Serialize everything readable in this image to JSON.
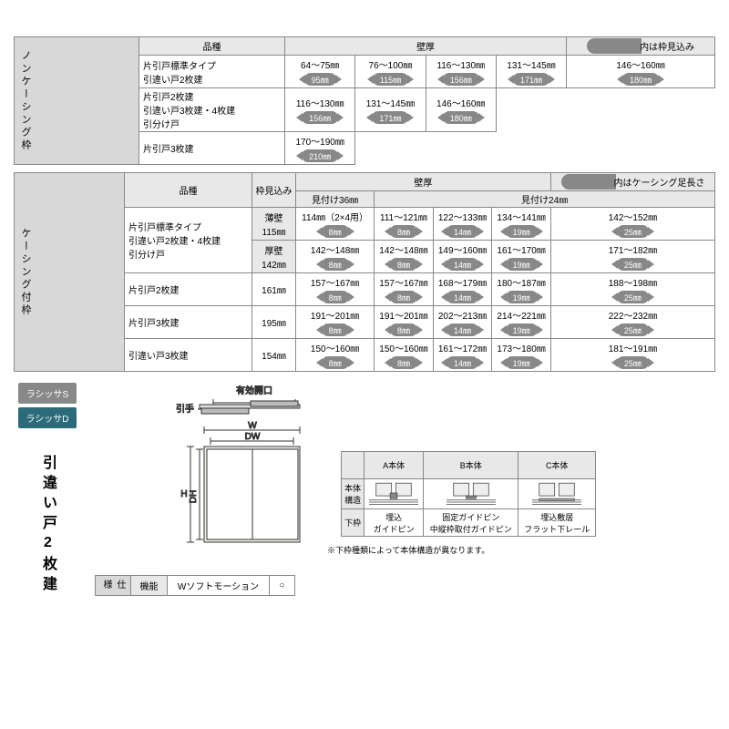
{
  "table1": {
    "vheader": "ノンケーシング枠",
    "colHint": {
      "pillText": "　　　　",
      "text": "内は枠見込み"
    },
    "headers": [
      "品種",
      "壁厚"
    ],
    "rows": [
      {
        "name": "片引戸標準タイプ\n引違い戸2枚建",
        "ranges": [
          "64～75㎜",
          "76～100㎜",
          "116～130㎜",
          "131～145㎜",
          "146～160㎜"
        ],
        "pills": [
          "95㎜",
          "115㎜",
          "156㎜",
          "171㎜",
          "180㎜"
        ]
      },
      {
        "name": "片引戸2枚建\n引違い戸3枚建・4枚建\n引分け戸",
        "ranges": [
          "116～130㎜",
          "131～145㎜",
          "146～160㎜"
        ],
        "pills": [
          "156㎜",
          "171㎜",
          "180㎜"
        ]
      },
      {
        "name": "片引戸3枚建",
        "ranges": [
          "170～190㎜"
        ],
        "pills": [
          "210㎜"
        ]
      }
    ]
  },
  "table2": {
    "vheader": "ケーシング付枠",
    "colHint": {
      "pillText": "　　　　",
      "text": "内はケーシング足長さ"
    },
    "headers": [
      "品種",
      "枠見込み",
      "壁厚"
    ],
    "sub": [
      "見付け36㎜",
      "見付け24㎜"
    ],
    "rows": [
      {
        "name": "片引戸標準タイプ\n引違い戸2枚建・4枚建\n引分け戸",
        "sub1": {
          "label": "薄壁\n115㎜",
          "ranges": [
            "114㎜（2×4用）",
            "111～121㎜",
            "122～133㎜",
            "134～141㎜",
            "142～152㎜"
          ],
          "pills": [
            "8㎜",
            "8㎜",
            "14㎜",
            "19㎜",
            "25㎜"
          ]
        },
        "sub2": {
          "label": "厚壁\n142㎜",
          "ranges": [
            "142～148㎜",
            "142～148㎜",
            "149～160㎜",
            "161～170㎜",
            "171～182㎜"
          ],
          "pills": [
            "8㎜",
            "8㎜",
            "14㎜",
            "19㎜",
            "25㎜"
          ]
        }
      },
      {
        "name": "片引戸2枚建",
        "mi": "161㎜",
        "ranges": [
          "157～167㎜",
          "157～167㎜",
          "168～179㎜",
          "180～187㎜",
          "188～198㎜"
        ],
        "pills": [
          "8㎜",
          "8㎜",
          "14㎜",
          "19㎜",
          "25㎜"
        ]
      },
      {
        "name": "片引戸3枚建",
        "mi": "195㎜",
        "ranges": [
          "191～201㎜",
          "191～201㎜",
          "202～213㎜",
          "214～221㎜",
          "222～232㎜"
        ],
        "pills": [
          "8㎜",
          "8㎜",
          "14㎜",
          "19㎜",
          "25㎜"
        ]
      },
      {
        "name": "引違い戸3枚建",
        "mi": "154㎜",
        "ranges": [
          "150～160㎜",
          "150～160㎜",
          "161～172㎜",
          "173～180㎜",
          "181～191㎜"
        ],
        "pills": [
          "8㎜",
          "8㎜",
          "14㎜",
          "19㎜",
          "25㎜"
        ]
      }
    ]
  },
  "diagram": {
    "tagS": "ラシッサS",
    "tagD": "ラシッサD",
    "title": "引違い戸2枚建",
    "labels": {
      "opening": "有効開口",
      "handle": "引手",
      "W": "W",
      "DW": "DW",
      "H": "H",
      "DH": "DH"
    },
    "specHeaders": {
      "shiyou": "仕様",
      "kinou": "機能"
    },
    "specRow": {
      "name": "Wソフトモーション",
      "mark": "○"
    },
    "rightTable": {
      "cols": [
        "A本体",
        "B本体",
        "C本体"
      ],
      "r1": "本体\n構造",
      "r2": "下枠",
      "cells": [
        "埋込\nガイドピン",
        "固定ガイドピン\n中縦枠取付ガイドピン",
        "埋込敷居\nフラット下レール"
      ]
    },
    "note": "※下枠種類によって本体構造が異なります。"
  },
  "colors": {
    "pill": "#888888",
    "vh": "#d8d8d8",
    "hdr2": "#e8e8e8",
    "tagD": "#2b6b7a"
  }
}
